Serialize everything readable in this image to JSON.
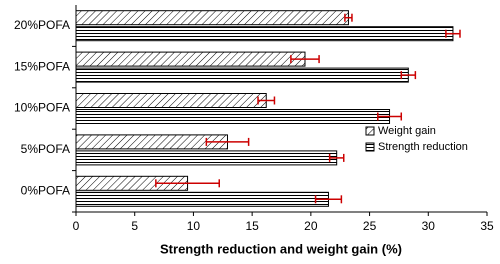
{
  "chart_data": {
    "type": "bar",
    "orientation": "horizontal",
    "x_label": "Strength reduction and weight gain (%)",
    "categories": [
      "0%POFA",
      "5%POFA",
      "10%POFA",
      "15%POFA",
      "20%POFA"
    ],
    "series": [
      {
        "name": "Weight gain",
        "color": "#000000",
        "hatch": "diagonal",
        "values": [
          9.5,
          12.9,
          16.2,
          19.5,
          23.2
        ],
        "errors": [
          2.7,
          1.8,
          0.7,
          1.2,
          0.3
        ]
      },
      {
        "name": "Strength reduction",
        "color": "#000000",
        "hatch": "horizontal",
        "values": [
          21.5,
          22.2,
          26.7,
          28.3,
          32.1
        ],
        "errors": [
          1.1,
          0.6,
          1.0,
          0.6,
          0.6
        ]
      }
    ],
    "error_color": "#cc0000",
    "xlim": [
      0,
      35
    ],
    "xticks": [
      0,
      5,
      10,
      15,
      20,
      25,
      30,
      35
    ],
    "grid": false,
    "legend": "right"
  }
}
